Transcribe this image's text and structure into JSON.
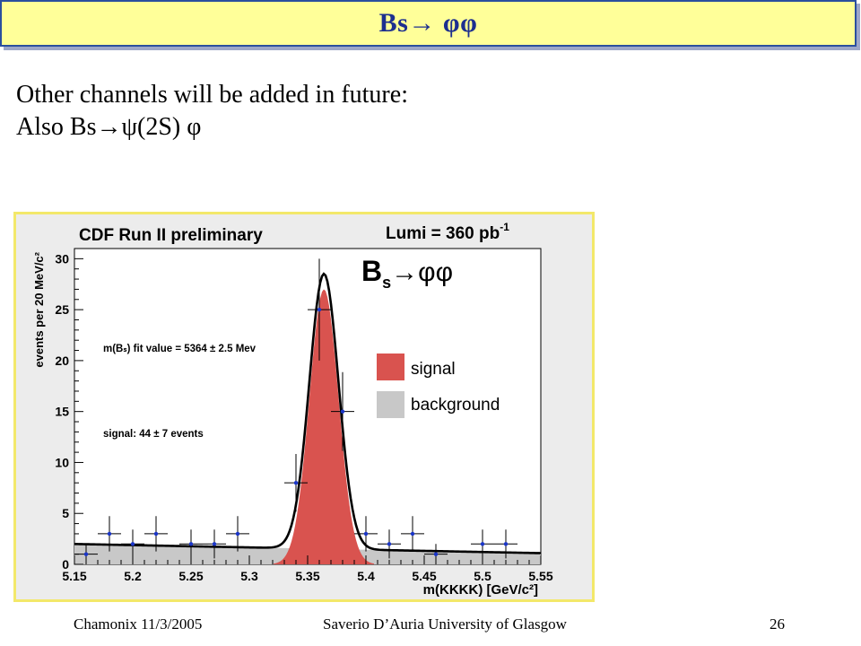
{
  "slide": {
    "title": "Bs→ φφ",
    "lines": [
      "Other channels will be added in future:",
      "Also Bs→ψ(2S) φ"
    ],
    "footer_left": "Chamonix 11/3/2005",
    "footer_center": "Saverio D’Auria University of Glasgow",
    "footer_right": "26"
  },
  "chart_data": {
    "type": "scatter",
    "title": "CDF Run II preliminary",
    "lumi_label": "Lumi = 360 pb",
    "lumi_exponent": "-1",
    "decay_label": "B",
    "decay_sub": "s",
    "decay_arrow": "→φφ",
    "xlabel": "m(KKKK) [GeV/c²]",
    "ylabel": "events per 20 MeV/c²",
    "xlim": [
      5.15,
      5.55
    ],
    "ylim": [
      0,
      31
    ],
    "xticks": [
      "5.15",
      "5.2",
      "5.25",
      "5.3",
      "5.35",
      "5.4",
      "5.45",
      "5.5",
      "5.55"
    ],
    "yticks": [
      "0",
      "5",
      "10",
      "15",
      "20",
      "25",
      "30"
    ],
    "annotation_fit": "m(Bₛ) fit value = 5364 ± 2.5 Mev",
    "annotation_signal": "signal: 44 ± 7 events",
    "legend": [
      {
        "label": "signal",
        "color": "#d9534f"
      },
      {
        "label": "background",
        "color": "#c8c8c8"
      }
    ],
    "points": [
      {
        "x": 5.16,
        "y": 1
      },
      {
        "x": 5.18,
        "y": 3
      },
      {
        "x": 5.2,
        "y": 2
      },
      {
        "x": 5.22,
        "y": 3
      },
      {
        "x": 5.25,
        "y": 2
      },
      {
        "x": 5.27,
        "y": 2
      },
      {
        "x": 5.29,
        "y": 3
      },
      {
        "x": 5.34,
        "y": 8
      },
      {
        "x": 5.36,
        "y": 25
      },
      {
        "x": 5.38,
        "y": 15
      },
      {
        "x": 5.4,
        "y": 3
      },
      {
        "x": 5.42,
        "y": 2
      },
      {
        "x": 5.44,
        "y": 3
      },
      {
        "x": 5.46,
        "y": 1
      },
      {
        "x": 5.5,
        "y": 2
      },
      {
        "x": 5.52,
        "y": 2
      }
    ],
    "fit": {
      "mean": 5.364,
      "sigma": 0.0125,
      "signal_peak": 27,
      "bkg_start": 2.0,
      "bkg_end": 1.1
    },
    "colors": {
      "signal": "#d9534f",
      "background": "#c8c8c8",
      "fit": "#000000",
      "points": "#1a35c8",
      "frame_bg": "#ececec"
    }
  }
}
